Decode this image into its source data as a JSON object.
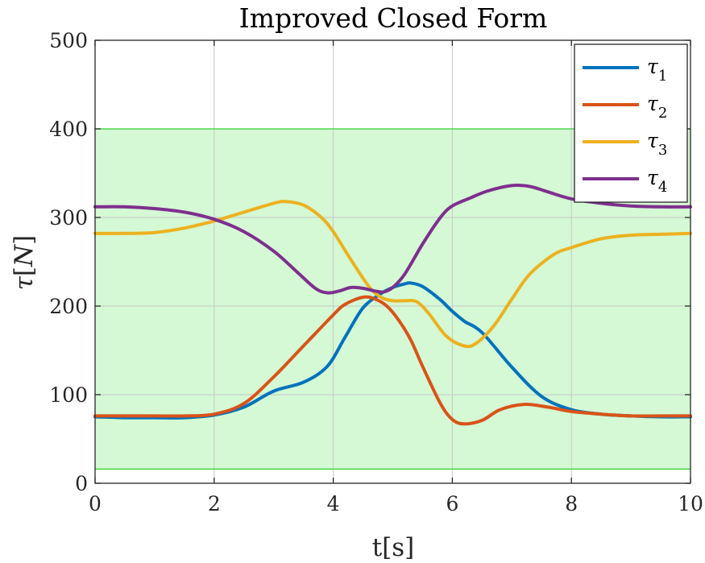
{
  "chart_data": {
    "type": "line",
    "title": "Improved Closed Form",
    "xlabel": "t[s]",
    "ylabel_symbol": "τ",
    "ylabel_unit": "N",
    "xlim": [
      0,
      10
    ],
    "ylim": [
      0,
      500
    ],
    "xticks": [
      0,
      2,
      4,
      6,
      8,
      10
    ],
    "yticks": [
      0,
      100,
      200,
      300,
      400,
      500
    ],
    "xtick_labels": [
      "0",
      "2",
      "4",
      "6",
      "8",
      "10"
    ],
    "ytick_labels": [
      "0",
      "100",
      "200",
      "300",
      "400",
      "500"
    ],
    "grid": true,
    "legend_position": "top-right",
    "band": {
      "y_low": 16,
      "y_high": 400,
      "fill": "#d4f9d4",
      "edge": "#2fcf2f"
    },
    "series": [
      {
        "name": "τ1",
        "base": "τ",
        "sub": "1",
        "color": "#0072bd",
        "x": [
          0,
          0.5,
          1,
          1.5,
          2,
          2.5,
          3,
          3.5,
          3.9,
          4.2,
          4.5,
          4.8,
          5.0,
          5.2,
          5.3,
          5.5,
          5.8,
          6.0,
          6.2,
          6.5,
          7.0,
          7.5,
          8.0,
          8.5,
          9.0,
          9.5,
          10
        ],
        "y": [
          75,
          74,
          74,
          74,
          77,
          86,
          104,
          114,
          132,
          165,
          198,
          214,
          221,
          225,
          226,
          222,
          207,
          194,
          183,
          170,
          131,
          98,
          83,
          78,
          76,
          75,
          75
        ]
      },
      {
        "name": "τ2",
        "base": "τ",
        "sub": "2",
        "color": "#d95319",
        "x": [
          0,
          0.5,
          1,
          1.5,
          2,
          2.5,
          3,
          3.5,
          4.0,
          4.2,
          4.5,
          4.7,
          4.9,
          5.1,
          5.3,
          5.5,
          5.8,
          6.0,
          6.2,
          6.5,
          6.8,
          7.2,
          7.6,
          8.0,
          8.5,
          9.0,
          9.5,
          10
        ],
        "y": [
          76,
          76,
          76,
          76,
          78,
          90,
          120,
          155,
          190,
          202,
          210,
          208,
          200,
          184,
          162,
          132,
          90,
          72,
          67,
          71,
          83,
          89,
          86,
          81,
          78,
          76,
          76,
          76
        ]
      },
      {
        "name": "τ3",
        "base": "τ",
        "sub": "3",
        "color": "#edb120",
        "x": [
          0,
          0.5,
          1,
          1.5,
          2,
          2.5,
          3,
          3.2,
          3.5,
          3.8,
          4.0,
          4.3,
          4.6,
          4.8,
          5.0,
          5.2,
          5.4,
          5.6,
          5.9,
          6.2,
          6.4,
          6.7,
          7.0,
          7.3,
          7.7,
          8.0,
          8.5,
          9.0,
          9.5,
          10
        ],
        "y": [
          282,
          282,
          283,
          288,
          296,
          306,
          316,
          318,
          314,
          300,
          284,
          252,
          222,
          210,
          206,
          206,
          205,
          192,
          166,
          155,
          158,
          178,
          208,
          236,
          258,
          266,
          276,
          280,
          281,
          282
        ]
      },
      {
        "name": "τ4",
        "base": "τ",
        "sub": "4",
        "color": "#7e2f8e",
        "x": [
          0,
          0.5,
          1,
          1.5,
          2,
          2.5,
          3,
          3.4,
          3.7,
          3.9,
          4.1,
          4.3,
          4.5,
          4.7,
          4.85,
          5.0,
          5.2,
          5.5,
          5.8,
          6.0,
          6.3,
          6.6,
          7.0,
          7.3,
          7.6,
          8.0,
          8.5,
          9.0,
          9.5,
          10
        ],
        "y": [
          312,
          312,
          310,
          306,
          298,
          284,
          262,
          238,
          220,
          215,
          217,
          221,
          220,
          217,
          216,
          221,
          236,
          270,
          300,
          313,
          322,
          330,
          336,
          335,
          329,
          321,
          316,
          313,
          312,
          312
        ]
      }
    ]
  }
}
